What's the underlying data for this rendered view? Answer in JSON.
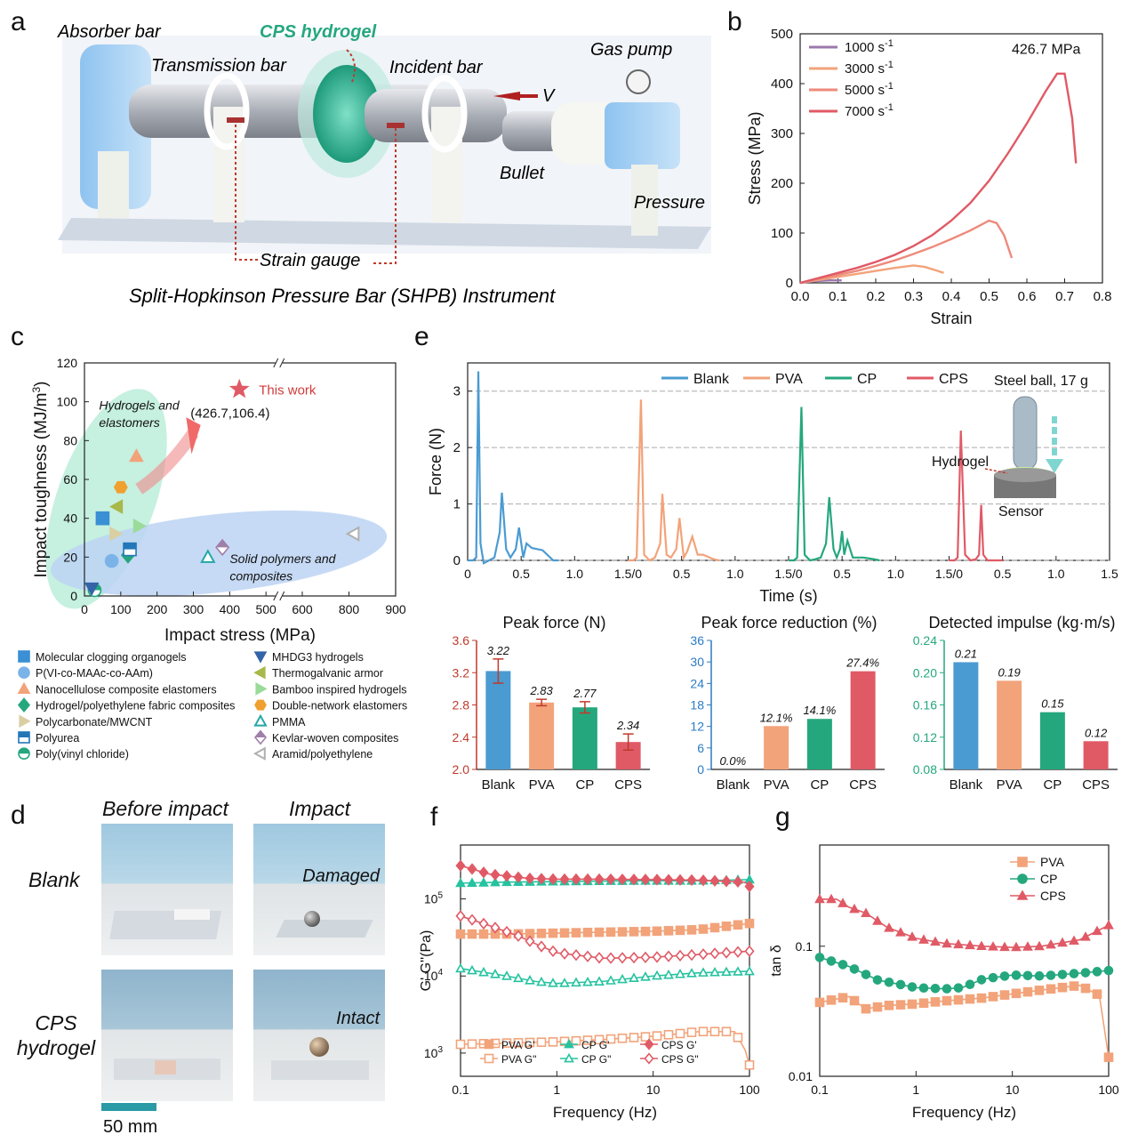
{
  "panels": {
    "a": "a",
    "b": "b",
    "c": "c",
    "d": "d",
    "e": "e",
    "f": "f",
    "g": "g"
  },
  "panel_a": {
    "labels": {
      "absorber": "Absorber bar",
      "transmission": "Transmission bar",
      "cps": "CPS hydrogel",
      "incident": "Incident bar",
      "gas_pump": "Gas pump",
      "v": "V",
      "bullet": "Bullet",
      "pressure": "Pressure",
      "strain_gauge": "Strain gauge"
    },
    "caption": "Split-Hopkinson Pressure Bar (SHPB) Instrument"
  },
  "panel_d": {
    "col_before": "Before impact",
    "col_impact": "Impact",
    "row_blank": "Blank",
    "row_cps_1": "CPS",
    "row_cps_2": "hydrogel",
    "damaged": "Damaged",
    "intact": "Intact",
    "scale": "50 mm"
  },
  "chart_data": [
    {
      "id": "b",
      "type": "line",
      "xlabel": "Strain",
      "ylabel": "Stress (MPa)",
      "xlim": [
        0,
        0.8
      ],
      "ylim": [
        0,
        500
      ],
      "xticks": [
        "0.0",
        "0.1",
        "0.2",
        "0.3",
        "0.4",
        "0.5",
        "0.6",
        "0.7",
        "0.8"
      ],
      "yticks": [
        "0",
        "100",
        "200",
        "300",
        "400",
        "500"
      ],
      "annotation": "426.7 MPa",
      "legend": {
        "position": "top-left"
      },
      "series": [
        {
          "name": "1000 s",
          "sup": "-1",
          "color": "#9b78ad",
          "x": [
            0,
            0.02,
            0.05,
            0.08,
            0.11
          ],
          "y": [
            0,
            2,
            4,
            5,
            5
          ]
        },
        {
          "name": "3000 s",
          "sup": "-1",
          "color": "#f2a37a",
          "x": [
            0,
            0.05,
            0.1,
            0.15,
            0.2,
            0.25,
            0.3,
            0.33,
            0.36,
            0.38
          ],
          "y": [
            0,
            6,
            12,
            18,
            24,
            30,
            35,
            32,
            25,
            20
          ]
        },
        {
          "name": "5000 s",
          "sup": "-1",
          "color": "#ee8a7a",
          "x": [
            0,
            0.05,
            0.1,
            0.15,
            0.2,
            0.25,
            0.3,
            0.35,
            0.4,
            0.45,
            0.5,
            0.52,
            0.54,
            0.56
          ],
          "y": [
            0,
            8,
            16,
            24,
            34,
            45,
            58,
            72,
            88,
            105,
            125,
            120,
            95,
            50
          ]
        },
        {
          "name": "7000 s",
          "sup": "-1",
          "color": "#e05a66",
          "x": [
            0,
            0.05,
            0.1,
            0.15,
            0.2,
            0.25,
            0.3,
            0.35,
            0.4,
            0.45,
            0.5,
            0.55,
            0.6,
            0.65,
            0.68,
            0.7,
            0.72,
            0.73
          ],
          "y": [
            0,
            10,
            20,
            30,
            42,
            56,
            74,
            96,
            125,
            160,
            205,
            260,
            320,
            385,
            420,
            420,
            330,
            240
          ]
        }
      ]
    },
    {
      "id": "c",
      "type": "scatter",
      "xlabel": "Impact stress (MPa)",
      "ylabel": "Impact toughness (MJ/m",
      "ylabel_sup": "3",
      "ylabel_end": ")",
      "xlim": [
        0,
        900
      ],
      "ylim": [
        0,
        120
      ],
      "xticks": [
        "0",
        "100",
        "200",
        "300",
        "400",
        "500",
        "600",
        "800",
        "900"
      ],
      "yticks": [
        "0",
        "20",
        "40",
        "60",
        "80",
        "100",
        "120"
      ],
      "this_work": {
        "label": "This work",
        "coord": "(426.7,106.4)",
        "x": 426.7,
        "y": 106.4
      },
      "region_hydrogels": "Hydrogels and elastomers",
      "region_hydrogels_1": "Hydrogels and",
      "region_hydrogels_2": "elastomers",
      "region_solid_1": "Solid polymers and",
      "region_solid_2": "composites",
      "points": [
        {
          "name": "Molecular clogging organogels",
          "marker": "square",
          "color": "#3b8fd4",
          "x": 50,
          "y": 40
        },
        {
          "name": "P(VI-co-MAAc-co-AAm)",
          "marker": "circle",
          "color": "#7bb3e8",
          "x": 75,
          "y": 18
        },
        {
          "name": "Nanocellulose composite elastomers",
          "marker": "triangle-up",
          "color": "#f2a37a",
          "x": 143,
          "y": 72
        },
        {
          "name": "Hydrogel/polyethylene fabric composites",
          "marker": "diamond",
          "color": "#25a77e",
          "x": 120,
          "y": 21
        },
        {
          "name": "Polycarbonate/MWCNT",
          "marker": "triangle-right",
          "color": "#d9cfa3",
          "x": 85,
          "y": 32
        },
        {
          "name": "Polyurea",
          "marker": "square-half",
          "color": "#2377b8",
          "x": 125,
          "y": 24
        },
        {
          "name": "Poly(vinyl chloride)",
          "marker": "circle-half",
          "color": "#25a77e",
          "x": 28,
          "y": 3
        },
        {
          "name": "MHDG3 hydrogels",
          "marker": "triangle-down",
          "color": "#3464a8",
          "x": 20,
          "y": 4
        },
        {
          "name": "Thermogalvanic armor",
          "marker": "triangle-left",
          "color": "#a8b84a",
          "x": 90,
          "y": 46
        },
        {
          "name": "Bamboo inspired hydrogels",
          "marker": "triangle-right",
          "color": "#9adb9a",
          "x": 150,
          "y": 36
        },
        {
          "name": "Double-network elastomers",
          "marker": "hexagon",
          "color": "#f0a030",
          "x": 100,
          "y": 56
        },
        {
          "name": "PMMA",
          "marker": "triangle-up-open",
          "color": "#25a7a7",
          "x": 340,
          "y": 20
        },
        {
          "name": "Kevlar-woven composites",
          "marker": "diamond-half",
          "color": "#a07fa8",
          "x": 380,
          "y": 25
        },
        {
          "name": "Aramid/polyethylene",
          "marker": "triangle-left-open",
          "color": "#b0b0b0",
          "x": 810,
          "y": 32
        }
      ]
    },
    {
      "id": "e",
      "type": "line",
      "xlabel": "Time (s)",
      "ylabel": "Force (N)",
      "ylim": [
        0,
        3.5
      ],
      "yticks": [
        "0",
        "1",
        "2",
        "3"
      ],
      "xticks": [
        "0",
        "0.5",
        "1.0",
        "1.5/0",
        "0.5",
        "1.0",
        "1.5/0",
        "0.5",
        "1.0",
        "1.5/0",
        "0.5",
        "1.0",
        "1.5"
      ],
      "inset": {
        "title": "Steel ball, 17 g",
        "hydrogel": "Hydrogel",
        "sensor": "Sensor"
      },
      "legend": {
        "position": "top"
      },
      "series": [
        {
          "name": "Blank",
          "color": "#4a9bd2",
          "t": [
            0,
            0.05,
            0.08,
            0.1,
            0.12,
            0.15,
            0.2,
            0.25,
            0.3,
            0.32,
            0.36,
            0.4,
            0.45,
            0.48,
            0.52,
            0.55,
            0.6,
            0.65,
            0.7,
            0.8,
            0.85
          ],
          "f": [
            0,
            0,
            0.05,
            3.35,
            0.3,
            -0.05,
            0,
            0.05,
            0.5,
            1.2,
            0.2,
            0.05,
            0.2,
            0.58,
            0.05,
            0.3,
            0.22,
            0.2,
            0.18,
            0,
            0
          ]
        },
        {
          "name": "PVA",
          "color": "#f2a37a",
          "t": [
            0,
            0.05,
            0.08,
            0.12,
            0.15,
            0.2,
            0.25,
            0.3,
            0.32,
            0.36,
            0.4,
            0.45,
            0.48,
            0.52,
            0.55,
            0.6,
            0.65,
            0.7,
            0.8,
            0.85
          ],
          "f": [
            0,
            0,
            0.05,
            2.85,
            0.1,
            0,
            0.05,
            0.3,
            1.18,
            0.1,
            0.05,
            0.2,
            0.75,
            0.05,
            0.15,
            0.42,
            0.1,
            0.1,
            0.02,
            0
          ]
        },
        {
          "name": "CP",
          "color": "#25a77e",
          "t": [
            0,
            0.05,
            0.08,
            0.12,
            0.15,
            0.2,
            0.25,
            0.3,
            0.35,
            0.38,
            0.42,
            0.45,
            0.48,
            0.5,
            0.52,
            0.55,
            0.6,
            0.65,
            0.7,
            0.8,
            0.85
          ],
          "f": [
            0,
            0,
            0.05,
            2.72,
            0.1,
            0,
            0.02,
            0.05,
            0.3,
            1.12,
            0.2,
            0.05,
            0.2,
            0.52,
            0.1,
            0.35,
            0.05,
            0.05,
            0.05,
            0.02,
            0
          ]
        },
        {
          "name": "CPS",
          "color": "#e05a66",
          "t": [
            0,
            0.05,
            0.08,
            0.11,
            0.15,
            0.2,
            0.25,
            0.28,
            0.3,
            0.32,
            0.36,
            0.4,
            0.45,
            0.5
          ],
          "f": [
            0,
            0,
            0.05,
            2.3,
            0.1,
            0,
            0.02,
            0.1,
            0.98,
            0.1,
            0,
            0,
            0,
            0
          ]
        }
      ]
    },
    {
      "id": "e1",
      "type": "bar",
      "title": "Peak force (N)",
      "categories": [
        "Blank",
        "PVA",
        "CP",
        "CPS"
      ],
      "values": [
        3.22,
        2.83,
        2.77,
        2.34
      ],
      "labels": [
        "3.22",
        "2.83",
        "2.77",
        "2.34"
      ],
      "errors": [
        0.15,
        0.04,
        0.07,
        0.1
      ],
      "ylim": [
        2.0,
        3.6
      ],
      "yticks": [
        "2.0",
        "2.4",
        "2.8",
        "3.2",
        "3.6"
      ],
      "colors": [
        "#4a9bd2",
        "#f2a37a",
        "#25a77e",
        "#e05a66"
      ],
      "axis_color": "#c0392b"
    },
    {
      "id": "e2",
      "type": "bar",
      "title": "Peak force reduction (%)",
      "categories": [
        "Blank",
        "PVA",
        "CP",
        "CPS"
      ],
      "values": [
        0.0,
        12.1,
        14.1,
        27.4
      ],
      "labels": [
        "0.0%",
        "12.1%",
        "14.1%",
        "27.4%"
      ],
      "ylim": [
        0,
        36
      ],
      "yticks": [
        "0",
        "6",
        "12",
        "18",
        "24",
        "30",
        "36"
      ],
      "colors": [
        "#4a9bd2",
        "#f2a37a",
        "#25a77e",
        "#e05a66"
      ],
      "axis_color": "#2a7bc4"
    },
    {
      "id": "e3",
      "type": "bar",
      "title": "Detected impulse (kg·m/s)",
      "categories": [
        "Blank",
        "PVA",
        "CP",
        "CPS"
      ],
      "values": [
        0.213,
        0.19,
        0.151,
        0.115
      ],
      "labels": [
        "0.21",
        "0.19",
        "0.15",
        "0.12"
      ],
      "ylim": [
        0.08,
        0.24
      ],
      "yticks": [
        "0.08",
        "0.12",
        "0.16",
        "0.20",
        "0.24"
      ],
      "colors": [
        "#4a9bd2",
        "#f2a37a",
        "#25a77e",
        "#e05a66"
      ],
      "axis_color": "#25a77e"
    },
    {
      "id": "f",
      "type": "line",
      "log_x": true,
      "log_y": true,
      "xlabel": "Frequency (Hz)",
      "ylabel": "G' G''(Pa)",
      "xlim": [
        0.1,
        100
      ],
      "ylim": [
        500,
        500000
      ],
      "xticks": [
        "0.1",
        "1",
        "10",
        "100"
      ],
      "yticks": [
        {
          "base": "10",
          "exp": "3"
        },
        {
          "base": "10",
          "exp": "4"
        },
        {
          "base": "10",
          "exp": "5"
        }
      ],
      "legend": {
        "position": "bottom"
      },
      "series": [
        {
          "name": "PVA G'",
          "color": "#f2a37a",
          "marker": "square",
          "filled": true,
          "x": [
            0.1,
            0.3,
            1,
            3,
            10,
            30,
            100
          ],
          "y": [
            35000,
            35000,
            36000,
            37000,
            38000,
            40000,
            48000
          ]
        },
        {
          "name": "PVA G\"",
          "color": "#f2a37a",
          "marker": "square",
          "filled": false,
          "x": [
            0.1,
            0.3,
            1,
            3,
            10,
            30,
            70,
            90,
            100
          ],
          "y": [
            1300,
            1350,
            1400,
            1500,
            1650,
            1900,
            1900,
            1100,
            700
          ]
        },
        {
          "name": "CP G'",
          "color": "#25c3a0",
          "marker": "triangle",
          "filled": true,
          "x": [
            0.1,
            0.3,
            1,
            3,
            10,
            30,
            100
          ],
          "y": [
            160000,
            165000,
            168000,
            170000,
            172000,
            172000,
            178000
          ]
        },
        {
          "name": "CP G\"",
          "color": "#25c3a0",
          "marker": "triangle",
          "filled": false,
          "x": [
            0.1,
            0.3,
            0.6,
            1,
            3,
            10,
            30,
            100
          ],
          "y": [
            12500,
            10000,
            8500,
            8000,
            8500,
            10000,
            11000,
            11500
          ]
        },
        {
          "name": "CPS G'",
          "color": "#e05a66",
          "marker": "diamond",
          "filled": true,
          "x": [
            0.1,
            0.2,
            0.5,
            1,
            3,
            10,
            30,
            90,
            100
          ],
          "y": [
            270000,
            210000,
            185000,
            180000,
            180000,
            178000,
            175000,
            165000,
            145000
          ]
        },
        {
          "name": "CPS G\"",
          "color": "#e05a66",
          "marker": "diamond",
          "filled": false,
          "x": [
            0.1,
            0.2,
            0.4,
            0.7,
            1,
            3,
            10,
            30,
            100
          ],
          "y": [
            60000,
            45000,
            33000,
            24000,
            20000,
            17000,
            17500,
            19000,
            21000
          ]
        }
      ]
    },
    {
      "id": "g",
      "type": "line",
      "log_x": true,
      "log_y": true,
      "xlabel": "Frequency (Hz)",
      "ylabel": "tan δ",
      "xlim": [
        0.1,
        100
      ],
      "ylim": [
        0.01,
        0.6
      ],
      "xticks": [
        "0.1",
        "1",
        "10",
        "100"
      ],
      "yticks": [
        "0.01",
        "0.1"
      ],
      "legend": {
        "position": "top-right"
      },
      "series": [
        {
          "name": "PVA",
          "color": "#f2a37a",
          "marker": "square",
          "x": [
            0.1,
            0.2,
            0.3,
            0.5,
            1,
            2,
            5,
            10,
            20,
            50,
            80,
            100
          ],
          "y": [
            0.037,
            0.041,
            0.033,
            0.035,
            0.036,
            0.038,
            0.04,
            0.043,
            0.046,
            0.05,
            0.042,
            0.014
          ]
        },
        {
          "name": "CP",
          "color": "#25a77e",
          "marker": "circle",
          "x": [
            0.1,
            0.2,
            0.4,
            1,
            2,
            3,
            5,
            10,
            20,
            50,
            100
          ],
          "y": [
            0.082,
            0.07,
            0.055,
            0.048,
            0.047,
            0.048,
            0.056,
            0.06,
            0.059,
            0.062,
            0.065
          ]
        },
        {
          "name": "CPS",
          "color": "#e05a66",
          "marker": "triangle",
          "x": [
            0.1,
            0.15,
            0.2,
            0.3,
            0.5,
            1,
            2,
            5,
            10,
            20,
            50,
            100
          ],
          "y": [
            0.23,
            0.23,
            0.2,
            0.18,
            0.14,
            0.115,
            0.105,
            0.1,
            0.098,
            0.1,
            0.112,
            0.145
          ]
        }
      ]
    }
  ]
}
